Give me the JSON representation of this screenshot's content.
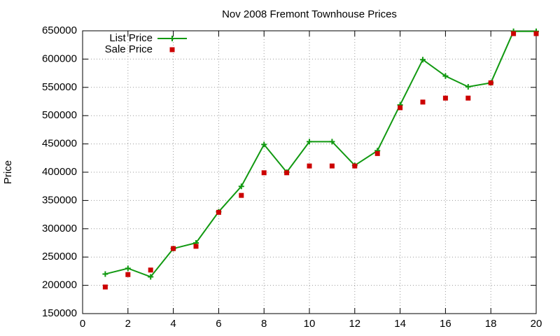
{
  "chart_data": {
    "type": "line",
    "title": "Nov 2008 Fremont Townhouse Prices",
    "y_label": "Price",
    "x": [
      1,
      2,
      3,
      4,
      5,
      6,
      7,
      8,
      9,
      10,
      11,
      12,
      13,
      14,
      15,
      16,
      17,
      18,
      19,
      20
    ],
    "series": [
      {
        "name": "List Price",
        "color": "#119911",
        "style": "line",
        "values": [
          220000,
          230000,
          215000,
          265000,
          275000,
          330000,
          375000,
          449000,
          400000,
          454000,
          454000,
          412000,
          438000,
          519000,
          599000,
          570000,
          551000,
          558000,
          649000,
          649000
        ]
      },
      {
        "name": "Sale Price",
        "color": "#cc0000",
        "style": "points",
        "values": [
          197000,
          219000,
          227000,
          265000,
          269000,
          329000,
          359000,
          399000,
          399000,
          411000,
          411000,
          411000,
          433000,
          514000,
          524000,
          531000,
          531000,
          558000,
          645000,
          645000
        ]
      }
    ],
    "xlim": [
      0,
      20
    ],
    "xticks": [
      0,
      2,
      4,
      6,
      8,
      10,
      12,
      14,
      16,
      18,
      20
    ],
    "ylim": [
      150000,
      650000
    ],
    "yticks": [
      150000,
      200000,
      250000,
      300000,
      350000,
      400000,
      450000,
      500000,
      550000,
      600000,
      650000
    ],
    "grid": true,
    "legend": "top-left"
  }
}
